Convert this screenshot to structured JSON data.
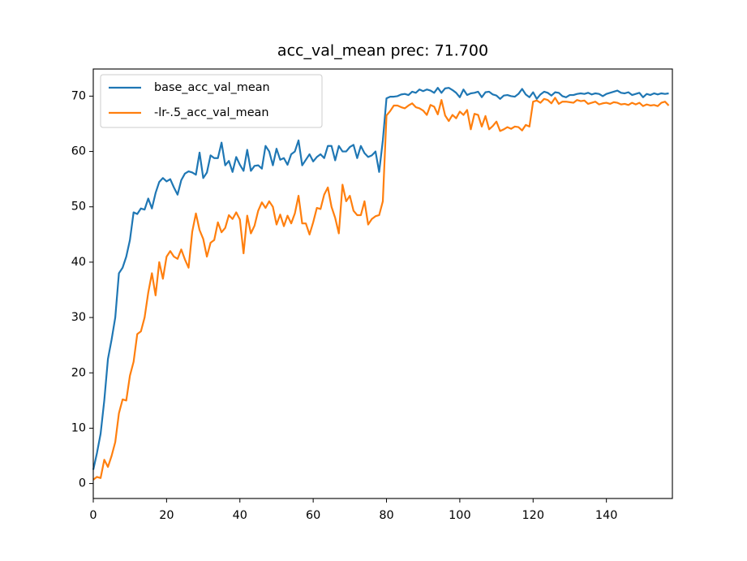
{
  "chart_data": {
    "type": "line",
    "title": "acc_val_mean prec: 71.700",
    "x": [
      0,
      1,
      2,
      3,
      4,
      5,
      6,
      7,
      8,
      9,
      10,
      11,
      12,
      13,
      14,
      15,
      16,
      17,
      18,
      19,
      20,
      21,
      22,
      23,
      24,
      25,
      26,
      27,
      28,
      29,
      30,
      31,
      32,
      33,
      34,
      35,
      36,
      37,
      38,
      39,
      40,
      41,
      42,
      43,
      44,
      45,
      46,
      47,
      48,
      49,
      50,
      51,
      52,
      53,
      54,
      55,
      56,
      57,
      58,
      59,
      60,
      61,
      62,
      63,
      64,
      65,
      66,
      67,
      68,
      69,
      70,
      71,
      72,
      73,
      74,
      75,
      76,
      77,
      78,
      79,
      80,
      81,
      82,
      83,
      84,
      85,
      86,
      87,
      88,
      89,
      90,
      91,
      92,
      93,
      94,
      95,
      96,
      97,
      98,
      99,
      100,
      101,
      102,
      103,
      104,
      105,
      106,
      107,
      108,
      109,
      110,
      111,
      112,
      113,
      114,
      115,
      116,
      117,
      118,
      119,
      120,
      121,
      122,
      123,
      124,
      125,
      126,
      127,
      128,
      129,
      130,
      131,
      132,
      133,
      134,
      135,
      136,
      137,
      138,
      139,
      140,
      141,
      142,
      143,
      144,
      145,
      146,
      147,
      148,
      149,
      150,
      151,
      152,
      153,
      154,
      155,
      156,
      157
    ],
    "series": [
      {
        "name": "base_acc_val_mean",
        "color": "#1f77b4",
        "values": [
          2.5,
          5.5,
          9,
          15,
          22.5,
          26,
          30,
          38,
          39,
          41,
          44,
          49,
          48.7,
          49.7,
          49.5,
          51.5,
          49.7,
          52.5,
          54.5,
          55.2,
          54.6,
          55,
          53.5,
          52.2,
          54.8,
          56,
          56.4,
          56.2,
          55.8,
          59.8,
          55.2,
          56.2,
          59.3,
          58.8,
          58.8,
          61.6,
          57.5,
          58.3,
          56.3,
          59,
          57.6,
          56.5,
          60.3,
          56.5,
          57.4,
          57.5,
          56.9,
          61,
          60,
          57.5,
          60.5,
          58.5,
          58.8,
          57.6,
          59.5,
          60,
          62,
          57.5,
          58.5,
          59.5,
          58.2,
          59,
          59.5,
          58.8,
          61,
          61,
          58.4,
          61,
          60,
          60,
          60.8,
          61.2,
          58.8,
          61,
          59.7,
          59,
          59.3,
          60,
          56.3,
          62,
          69.6,
          69.9,
          69.9,
          70,
          70.3,
          70.4,
          70.2,
          70.8,
          70.6,
          71.2,
          70.9,
          71.2,
          71,
          70.6,
          71.5,
          70.6,
          71.4,
          71.5,
          71.1,
          70.6,
          69.8,
          71.2,
          70.2,
          70.5,
          70.6,
          70.8,
          69.8,
          70.7,
          70.8,
          70.3,
          70.1,
          69.5,
          70.1,
          70.2,
          70,
          69.9,
          70.4,
          71.3,
          70.3,
          69.8,
          70.7,
          69.5,
          70.3,
          70.8,
          70.6,
          70.1,
          70.7,
          70.6,
          70,
          69.8,
          70.2,
          70.2,
          70.4,
          70.5,
          70.4,
          70.6,
          70.3,
          70.5,
          70.4,
          70,
          70.4,
          70.6,
          70.8,
          71,
          70.6,
          70.5,
          70.7,
          70.2,
          70.4,
          70.6,
          69.8,
          70.4,
          70.2,
          70.5,
          70.3,
          70.5,
          70.4,
          70.5
        ]
      },
      {
        "name": "-lr-.5_acc_val_mean",
        "color": "#ff7f0e",
        "values": [
          0.7,
          1.2,
          1,
          4.3,
          3,
          5,
          7.5,
          12.7,
          15.2,
          15,
          19.5,
          22,
          27,
          27.5,
          30,
          34.5,
          38,
          34,
          40,
          37,
          41,
          42,
          41,
          40.6,
          42.3,
          40.5,
          39,
          45.5,
          48.8,
          45.8,
          44.2,
          41,
          43.5,
          44,
          47.2,
          45.4,
          46.2,
          48.5,
          47.8,
          49,
          47.7,
          41.6,
          48.4,
          45.2,
          46.6,
          49.3,
          50.8,
          49.8,
          51,
          50,
          46.8,
          48.6,
          46.5,
          48.4,
          47,
          48.8,
          52,
          47,
          47,
          45,
          47.2,
          49.8,
          49.6,
          52.2,
          53.5,
          50,
          48,
          45.2,
          54,
          51,
          52,
          49.3,
          48.5,
          48.5,
          51,
          46.8,
          47.8,
          48.3,
          48.5,
          51,
          66.5,
          67.3,
          68.3,
          68.3,
          68,
          67.8,
          68.3,
          68.7,
          68,
          67.8,
          67.4,
          66.6,
          68.4,
          68.1,
          66.7,
          69.3,
          66.5,
          65.5,
          66.6,
          66,
          67.2,
          66.6,
          67.5,
          64,
          66.8,
          66.6,
          64.5,
          66.4,
          64,
          64.6,
          65.4,
          63.7,
          64,
          64.4,
          64.1,
          64.5,
          64.4,
          63.8,
          64.8,
          64.5,
          69,
          69.2,
          68.8,
          69.5,
          69.3,
          68.7,
          69.7,
          68.6,
          69,
          69,
          68.9,
          68.8,
          69.3,
          69.1,
          69.2,
          68.6,
          68.8,
          69,
          68.5,
          68.7,
          68.8,
          68.6,
          68.9,
          68.8,
          68.5,
          68.6,
          68.4,
          68.8,
          68.5,
          68.8,
          68.2,
          68.5,
          68.3,
          68.4,
          68.2,
          68.8,
          69,
          68.3
        ]
      }
    ],
    "xlim": [
      0,
      158
    ],
    "ylim": [
      -2.7,
      74.9
    ],
    "xticks": [
      0,
      20,
      40,
      60,
      80,
      100,
      120,
      140
    ],
    "yticks": [
      0,
      10,
      20,
      30,
      40,
      50,
      60,
      70
    ],
    "legend": "upper left"
  }
}
